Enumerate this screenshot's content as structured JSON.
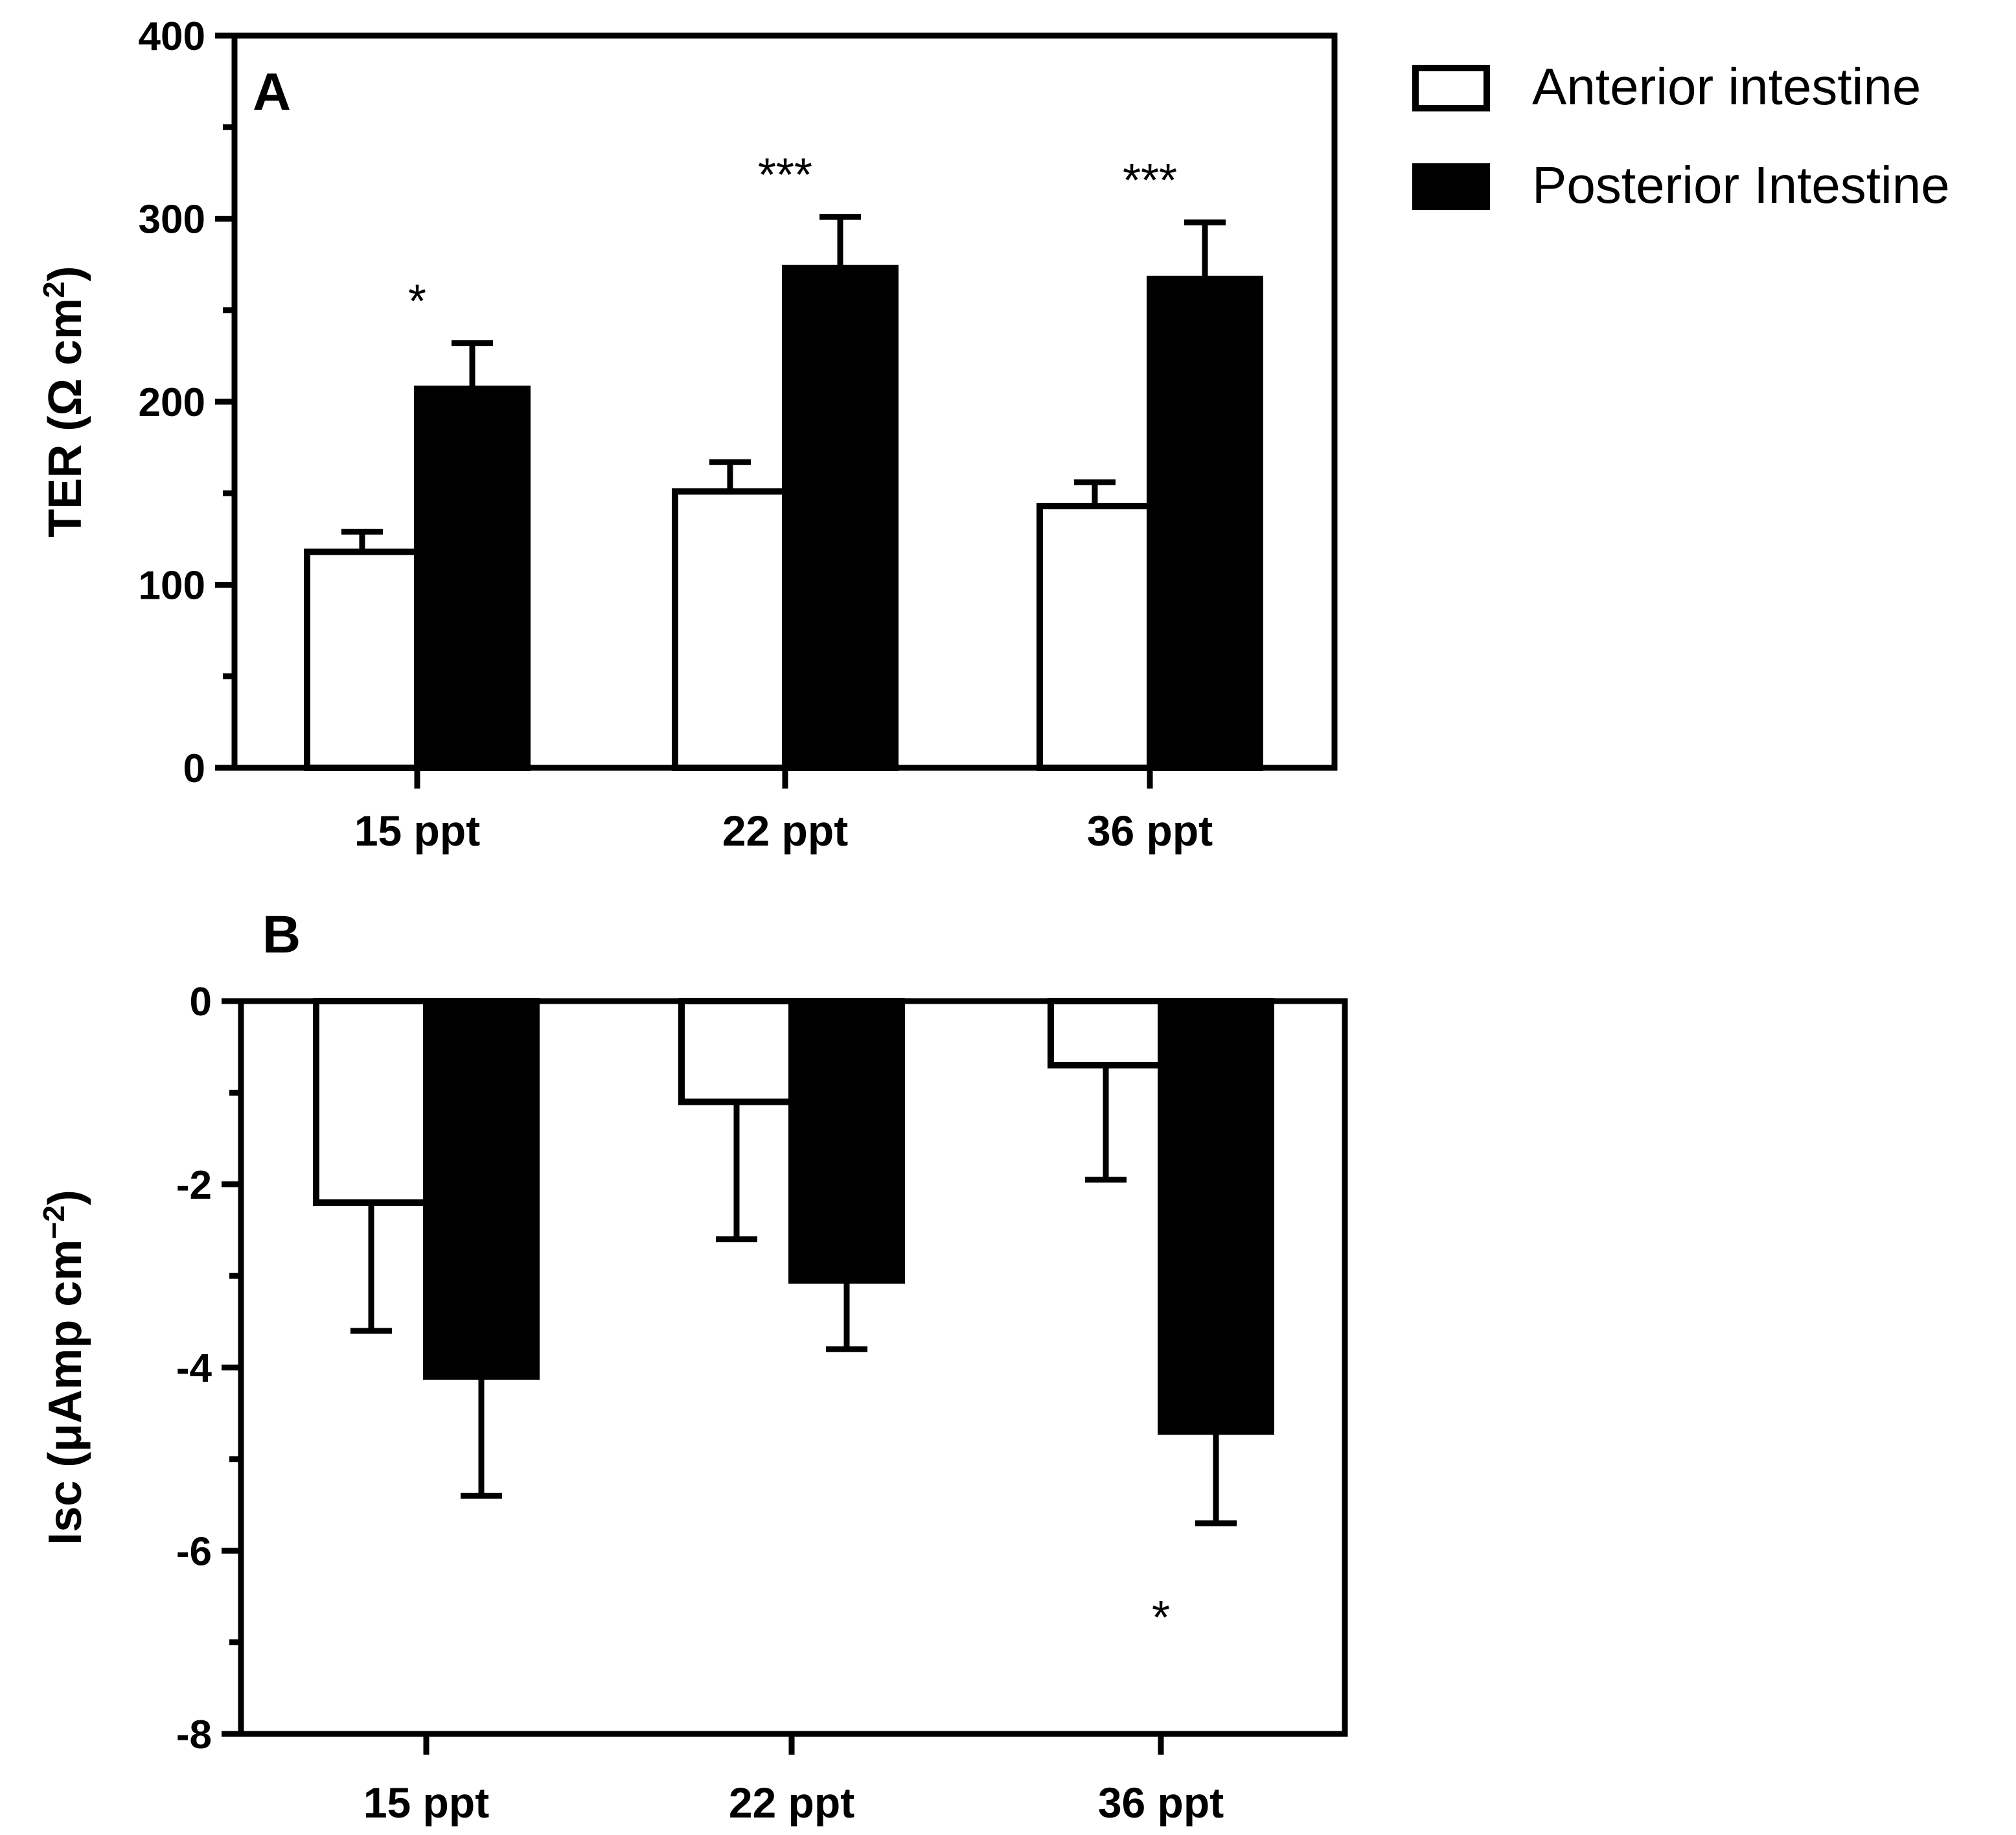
{
  "legend": {
    "items": [
      {
        "label": "Anterior intestine",
        "fill": "#ffffff",
        "stroke": "#000000"
      },
      {
        "label": "Posterior Intestine",
        "fill": "#000000",
        "stroke": "#000000"
      }
    ]
  },
  "chart_data": [
    {
      "panel": "A",
      "type": "bar",
      "ylabel": "TER (Ω cm",
      "ylabel_sup": "2",
      "ylabel_close": ")",
      "categories": [
        "15 ppt",
        "22 ppt",
        "36 ppt"
      ],
      "ylim": [
        0,
        400
      ],
      "ticks": [
        0,
        100,
        200,
        300,
        400
      ],
      "minor_ticks": [
        50,
        150,
        250,
        350
      ],
      "series": [
        {
          "name": "Anterior intestine",
          "values": [
            118,
            151,
            143
          ],
          "errors": [
            11,
            16,
            13
          ]
        },
        {
          "name": "Posterior Intestine",
          "values": [
            207,
            273,
            267
          ],
          "errors": [
            25,
            28,
            31
          ]
        }
      ],
      "annotations": [
        {
          "category": 0,
          "text": "*"
        },
        {
          "category": 1,
          "text": "***"
        },
        {
          "category": 2,
          "text": "***"
        }
      ]
    },
    {
      "panel": "B",
      "type": "bar",
      "ylabel": "Isc (μAmp cm",
      "ylabel_sup": "−2",
      "ylabel_close": ")",
      "categories": [
        "15 ppt",
        "22 ppt",
        "36 ppt"
      ],
      "ylim": [
        -8,
        0
      ],
      "ticks": [
        0,
        -2,
        -4,
        -6,
        -8
      ],
      "minor_ticks": [
        -1,
        -3,
        -5,
        -7
      ],
      "series": [
        {
          "name": "Anterior intestine",
          "values": [
            -2.2,
            -1.1,
            -0.7
          ],
          "errors": [
            1.4,
            1.5,
            1.25
          ]
        },
        {
          "name": "Posterior Intestine",
          "values": [
            -4.1,
            -3.05,
            -4.7
          ],
          "errors": [
            1.3,
            0.75,
            1.0
          ]
        }
      ],
      "annotations": [
        {
          "category": 2,
          "text": "*"
        }
      ]
    }
  ]
}
